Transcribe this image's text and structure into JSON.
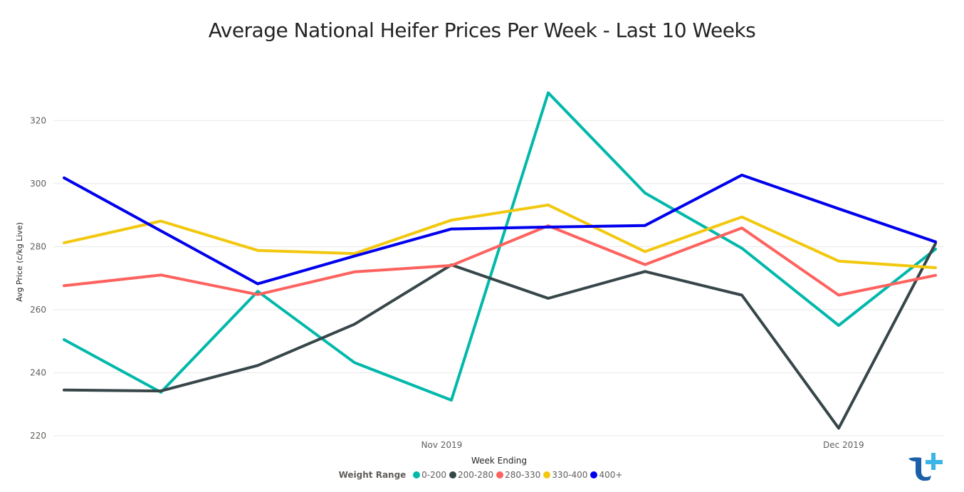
{
  "chart_data": {
    "type": "line",
    "title": "Average National Heifer Prices Per Week - Last 10 Weeks",
    "xlabel": "Week Ending",
    "ylabel": "Avg Price (c/kg Live)",
    "ylim": [
      220,
      330
    ],
    "yticks": [
      220,
      240,
      260,
      280,
      300,
      320
    ],
    "x_tick_labels": [
      {
        "label": "Nov 2019",
        "index": 3.9
      },
      {
        "label": "Dec 2019",
        "index": 8.05
      }
    ],
    "grid": true,
    "legend_title": "Weight Range",
    "legend_position": "bottom-center",
    "series": [
      {
        "name": "0-200",
        "color": "#01B8AA",
        "values": [
          250.5,
          233.8,
          265.8,
          243.2,
          231.3,
          328.8,
          297.0,
          279.5,
          255.0,
          279.2
        ]
      },
      {
        "name": "200-280",
        "color": "#374649",
        "values": [
          234.5,
          234.2,
          242.3,
          255.4,
          274.2,
          263.6,
          272.1,
          264.6,
          222.4,
          281.0
        ]
      },
      {
        "name": "280-330",
        "color": "#FD625E",
        "values": [
          267.6,
          271.0,
          264.8,
          272.0,
          274.0,
          286.6,
          274.3,
          285.9,
          264.6,
          270.9
        ]
      },
      {
        "name": "330-400",
        "color": "#F2C80F",
        "values": [
          281.2,
          288.1,
          278.8,
          277.8,
          288.4,
          293.2,
          278.4,
          289.4,
          275.4,
          273.3
        ]
      },
      {
        "name": "400+",
        "color": "#0000EE",
        "values": [
          301.8,
          285.0,
          268.2,
          277.0,
          285.6,
          286.2,
          286.7,
          302.7,
          292.0,
          281.5
        ]
      }
    ]
  },
  "logo": {
    "icon": "t-plus-logo-icon",
    "color_dark": "#1A5FA8",
    "color_light": "#3BB4E6"
  }
}
